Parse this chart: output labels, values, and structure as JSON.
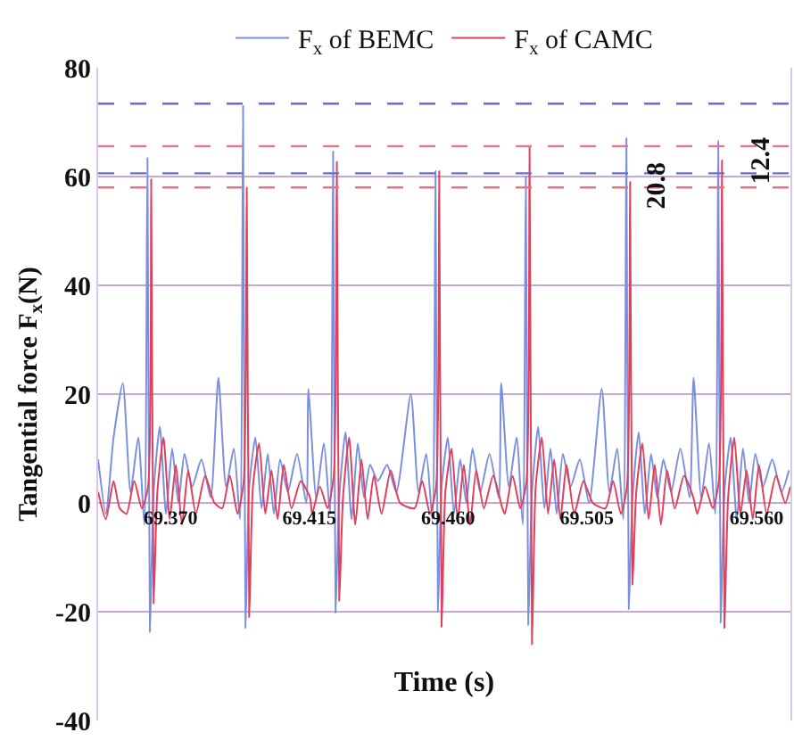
{
  "chart_data": {
    "type": "line",
    "xlabel": "Time (s)",
    "ylabel": "Tangential force F$_{x}$(N)",
    "xlim": [
      69.3465,
      69.571
    ],
    "xticks": [
      {
        "value": 69.37,
        "label": "69.370"
      },
      {
        "value": 69.415,
        "label": "69.415"
      },
      {
        "value": 69.46,
        "label": "69.460"
      },
      {
        "value": 69.505,
        "label": "69.505"
      },
      {
        "value": 69.56,
        "label": "69.560"
      }
    ],
    "ylim": [
      -40,
      80
    ],
    "yticks": [
      -40,
      -20,
      0,
      20,
      40,
      60,
      80
    ],
    "grid": "y",
    "legend": "top",
    "marker": "none",
    "line_style": "solid",
    "series": [
      {
        "name": "F$_{x}$ of BEMC",
        "color": "#7b8fe0",
        "x": [
          69.3465,
          69.349,
          69.3515,
          69.3545,
          69.357,
          69.3595,
          69.3615,
          69.3625,
          69.3633,
          69.3645,
          69.3665,
          69.3685,
          69.3705,
          69.3725,
          69.3745,
          69.377,
          69.38,
          69.383,
          69.3855,
          69.388,
          69.3905,
          69.3925,
          69.3935,
          69.3943,
          69.3955,
          69.3975,
          69.3995,
          69.4015,
          69.4035,
          69.4055,
          69.408,
          69.411,
          69.414,
          69.4147,
          69.4172,
          69.4197,
          69.4217,
          69.4227,
          69.4235,
          69.4247,
          69.4267,
          69.4287,
          69.4307,
          69.4327,
          69.4347,
          69.4372,
          69.4402,
          69.4432,
          69.4479,
          69.4504,
          69.4529,
          69.4549,
          69.4559,
          69.4567,
          69.4579,
          69.4599,
          69.4619,
          69.4639,
          69.4659,
          69.4679,
          69.4704,
          69.4734,
          69.4764,
          69.4772,
          69.4797,
          69.4822,
          69.4842,
          69.4852,
          69.486,
          69.4872,
          69.4892,
          69.4912,
          69.4932,
          69.4952,
          69.4972,
          69.4997,
          69.5027,
          69.5057,
          69.5098,
          69.5123,
          69.5148,
          69.5168,
          69.5178,
          69.5186,
          69.5198,
          69.5218,
          69.5238,
          69.5258,
          69.5278,
          69.5298,
          69.5323,
          69.5353,
          69.5383,
          69.5396,
          69.5421,
          69.5446,
          69.5466,
          69.5476,
          69.5484,
          69.5496,
          69.5516,
          69.5536,
          69.5556,
          69.5576,
          69.5596,
          69.5621,
          69.5651,
          69.5681,
          69.5705
        ],
        "values": [
          8,
          -2,
          12,
          22,
          2,
          12,
          -4,
          63.4,
          -23.7,
          2,
          14,
          -2,
          10,
          0,
          9,
          3,
          8,
          1,
          23,
          3,
          10,
          -3,
          73,
          -23,
          3,
          12,
          -1,
          9,
          -2,
          8,
          2,
          9,
          0,
          21,
          1,
          11,
          -2,
          64.6,
          -20.2,
          1,
          13,
          -3,
          11,
          1,
          7,
          4,
          7,
          2,
          20,
          2,
          9,
          -3,
          61,
          -20,
          3,
          12,
          -2,
          8,
          0,
          10,
          2,
          9,
          1,
          22,
          3,
          12,
          -4,
          60,
          -22.4,
          2,
          14,
          -1,
          10,
          -2,
          9,
          3,
          8,
          0,
          21,
          2,
          10,
          -3,
          67,
          -19.5,
          1,
          13,
          -2,
          9,
          1,
          8,
          2,
          10,
          1,
          23,
          1,
          11,
          -2,
          66.5,
          -22,
          2,
          12,
          -3,
          10,
          0,
          9,
          3,
          8,
          2,
          6
        ]
      },
      {
        "name": "F$_{x}$ of CAMC",
        "color": "#e0405a",
        "x": [
          69.3465,
          69.349,
          69.3515,
          69.3535,
          69.3557,
          69.3582,
          69.3607,
          69.3627,
          69.3637,
          69.3645,
          69.3657,
          69.3677,
          69.3697,
          69.3717,
          69.3737,
          69.3757,
          69.3782,
          69.3812,
          69.3842,
          69.3867,
          69.3892,
          69.3917,
          69.3937,
          69.3947,
          69.3955,
          69.3967,
          69.3987,
          69.4007,
          69.4027,
          69.4047,
          69.4067,
          69.4092,
          69.4122,
          69.4152,
          69.4159,
          69.4184,
          69.4209,
          69.4229,
          69.4239,
          69.4247,
          69.4259,
          69.4279,
          69.4299,
          69.4319,
          69.4339,
          69.4359,
          69.4384,
          69.4414,
          69.4444,
          69.4491,
          69.4516,
          69.4541,
          69.4561,
          69.4571,
          69.4579,
          69.4591,
          69.4611,
          69.4631,
          69.4651,
          69.4671,
          69.4691,
          69.4716,
          69.4746,
          69.4776,
          69.4784,
          69.4809,
          69.4834,
          69.4854,
          69.4864,
          69.4872,
          69.4884,
          69.4904,
          69.4924,
          69.4944,
          69.4964,
          69.4984,
          69.5009,
          69.5039,
          69.5069,
          69.511,
          69.5135,
          69.516,
          69.518,
          69.519,
          69.5198,
          69.521,
          69.523,
          69.525,
          69.527,
          69.529,
          69.531,
          69.5335,
          69.5365,
          69.5395,
          69.5408,
          69.5433,
          69.5458,
          69.5478,
          69.5488,
          69.5496,
          69.5508,
          69.5528,
          69.5548,
          69.5568,
          69.5588,
          69.5608,
          69.5633,
          69.5663,
          69.5693,
          69.571
        ],
        "values": [
          2,
          -3,
          4,
          -1,
          -2,
          4,
          -1,
          3,
          59.5,
          -18.5,
          2,
          12,
          -3,
          7,
          -4,
          6,
          -2,
          5,
          0,
          -1,
          5,
          -2,
          4,
          58,
          -21,
          3,
          11,
          -2,
          6,
          -3,
          7,
          -1,
          4,
          1,
          -2,
          3,
          -1,
          5,
          62.7,
          -18,
          1,
          12,
          -4,
          8,
          -3,
          5,
          -2,
          6,
          0,
          -1,
          4,
          -2,
          3,
          61,
          -22.8,
          2,
          10,
          -3,
          7,
          -4,
          6,
          -1,
          5,
          -1,
          -2,
          5,
          -1,
          4,
          65.6,
          -26,
          3,
          12,
          -2,
          8,
          -3,
          7,
          -2,
          4,
          0,
          -1,
          4,
          -2,
          3,
          59,
          -15,
          2,
          11,
          -3,
          7,
          -4,
          6,
          -1,
          5,
          1,
          -2,
          3,
          -1,
          4,
          63,
          -23,
          1,
          12,
          -2,
          6,
          -3,
          7,
          -2,
          5,
          0,
          3
        ]
      }
    ],
    "ref_lines": [
      {
        "axis": "y",
        "value": 73.4,
        "color": "#6a6ad8",
        "line_style": "dashed"
      },
      {
        "axis": "y",
        "value": 60.6,
        "color": "#6a6ad8",
        "line_style": "dashed"
      },
      {
        "axis": "y",
        "value": 65.6,
        "color": "#f07088",
        "line_style": "dashed"
      },
      {
        "axis": "y",
        "value": 58,
        "color": "#f07088",
        "line_style": "dashed"
      }
    ],
    "annotations": [
      "20.8",
      "12.4"
    ]
  }
}
